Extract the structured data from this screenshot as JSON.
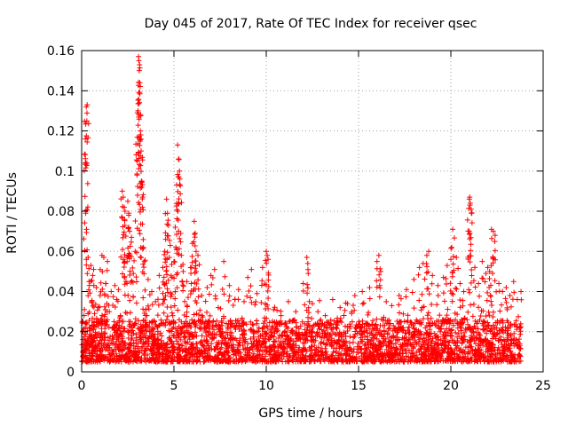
{
  "chart_data": {
    "type": "scatter",
    "title": "Day 045 of 2017, Rate Of TEC Index for receiver qsec",
    "xlabel": "GPS time / hours",
    "ylabel": "ROTI / TECUs",
    "xlim": [
      0,
      25
    ],
    "ylim": [
      0,
      0.16
    ],
    "xticks": [
      0,
      5,
      10,
      15,
      20,
      25
    ],
    "xtick_labels": [
      "0",
      "5",
      "10",
      "15",
      "20",
      "25"
    ],
    "yticks": [
      0,
      0.02,
      0.04,
      0.06,
      0.08,
      0.1,
      0.12,
      0.14,
      0.16
    ],
    "ytick_labels": [
      "0",
      "0.02",
      "0.04",
      "0.06",
      "0.08",
      "0.1",
      "0.12",
      "0.14",
      "0.16"
    ],
    "grid": true,
    "marker": "+",
    "series_color": "#ff0000",
    "series": [
      {
        "name": "ROTI",
        "points": [
          [
            0.05,
            0.02
          ],
          [
            0.1,
            0.012
          ],
          [
            0.15,
            0.031
          ],
          [
            0.2,
            0.104
          ],
          [
            0.22,
            0.079
          ],
          [
            0.25,
            0.132
          ],
          [
            0.28,
            0.125
          ],
          [
            0.3,
            0.133
          ],
          [
            0.35,
            0.057
          ],
          [
            0.4,
            0.045
          ],
          [
            0.45,
            0.022
          ],
          [
            0.5,
            0.053
          ],
          [
            0.55,
            0.035
          ],
          [
            0.6,
            0.048
          ],
          [
            0.65,
            0.051
          ],
          [
            0.7,
            0.029
          ],
          [
            0.8,
            0.042
          ],
          [
            0.9,
            0.025
          ],
          [
            1.0,
            0.038
          ],
          [
            1.1,
            0.058
          ],
          [
            1.2,
            0.057
          ],
          [
            1.3,
            0.044
          ],
          [
            1.4,
            0.055
          ],
          [
            1.5,
            0.03
          ],
          [
            1.6,
            0.04
          ],
          [
            1.7,
            0.022
          ],
          [
            1.8,
            0.043
          ],
          [
            1.9,
            0.036
          ],
          [
            2.0,
            0.041
          ],
          [
            2.1,
            0.028
          ],
          [
            2.2,
            0.09
          ],
          [
            2.25,
            0.087
          ],
          [
            2.3,
            0.082
          ],
          [
            2.35,
            0.08
          ],
          [
            2.4,
            0.045
          ],
          [
            2.5,
            0.085
          ],
          [
            2.55,
            0.078
          ],
          [
            2.6,
            0.07
          ],
          [
            2.7,
            0.067
          ],
          [
            2.8,
            0.049
          ],
          [
            2.9,
            0.06
          ],
          [
            3.0,
            0.098
          ],
          [
            3.02,
            0.129
          ],
          [
            3.05,
            0.13
          ],
          [
            3.08,
            0.157
          ],
          [
            3.1,
            0.155
          ],
          [
            3.12,
            0.15
          ],
          [
            3.15,
            0.144
          ],
          [
            3.18,
            0.12
          ],
          [
            3.2,
            0.118
          ],
          [
            3.22,
            0.11
          ],
          [
            3.25,
            0.092
          ],
          [
            3.3,
            0.087
          ],
          [
            3.35,
            0.062
          ],
          [
            3.4,
            0.055
          ],
          [
            3.6,
            0.046
          ],
          [
            3.8,
            0.04
          ],
          [
            4.0,
            0.035
          ],
          [
            4.2,
            0.048
          ],
          [
            4.4,
            0.052
          ],
          [
            4.5,
            0.06
          ],
          [
            4.55,
            0.066
          ],
          [
            4.6,
            0.086
          ],
          [
            4.65,
            0.079
          ],
          [
            4.7,
            0.073
          ],
          [
            4.8,
            0.063
          ],
          [
            4.9,
            0.047
          ],
          [
            5.0,
            0.055
          ],
          [
            5.1,
            0.062
          ],
          [
            5.15,
            0.084
          ],
          [
            5.2,
            0.113
          ],
          [
            5.25,
            0.106
          ],
          [
            5.3,
            0.1
          ],
          [
            5.32,
            0.096
          ],
          [
            5.4,
            0.058
          ],
          [
            5.5,
            0.05
          ],
          [
            5.7,
            0.045
          ],
          [
            5.9,
            0.052
          ],
          [
            6.0,
            0.064
          ],
          [
            6.1,
            0.075
          ],
          [
            6.15,
            0.069
          ],
          [
            6.2,
            0.06
          ],
          [
            6.3,
            0.058
          ],
          [
            6.5,
            0.038
          ],
          [
            6.8,
            0.042
          ],
          [
            7.0,
            0.048
          ],
          [
            7.2,
            0.051
          ],
          [
            7.4,
            0.032
          ],
          [
            7.7,
            0.055
          ],
          [
            8.0,
            0.043
          ],
          [
            8.3,
            0.036
          ],
          [
            8.5,
            0.041
          ],
          [
            8.8,
            0.035
          ],
          [
            9.0,
            0.047
          ],
          [
            9.2,
            0.051
          ],
          [
            9.5,
            0.039
          ],
          [
            9.8,
            0.052
          ],
          [
            10.0,
            0.06
          ],
          [
            10.05,
            0.058
          ],
          [
            10.1,
            0.056
          ],
          [
            10.4,
            0.031
          ],
          [
            10.8,
            0.028
          ],
          [
            11.2,
            0.035
          ],
          [
            11.6,
            0.03
          ],
          [
            12.0,
            0.044
          ],
          [
            12.2,
            0.057
          ],
          [
            12.25,
            0.054
          ],
          [
            12.5,
            0.034
          ],
          [
            12.8,
            0.03
          ],
          [
            13.2,
            0.028
          ],
          [
            13.6,
            0.036
          ],
          [
            14.0,
            0.032
          ],
          [
            14.4,
            0.034
          ],
          [
            14.8,
            0.038
          ],
          [
            15.2,
            0.04
          ],
          [
            15.6,
            0.042
          ],
          [
            16.0,
            0.055
          ],
          [
            16.1,
            0.058
          ],
          [
            16.2,
            0.05
          ],
          [
            16.5,
            0.035
          ],
          [
            16.8,
            0.033
          ],
          [
            17.2,
            0.038
          ],
          [
            17.6,
            0.041
          ],
          [
            18.0,
            0.046
          ],
          [
            18.3,
            0.052
          ],
          [
            18.5,
            0.054
          ],
          [
            18.7,
            0.058
          ],
          [
            18.8,
            0.06
          ],
          [
            19.0,
            0.048
          ],
          [
            19.3,
            0.043
          ],
          [
            19.6,
            0.047
          ],
          [
            19.8,
            0.053
          ],
          [
            20.0,
            0.056
          ],
          [
            20.05,
            0.062
          ],
          [
            20.1,
            0.071
          ],
          [
            20.3,
            0.057
          ],
          [
            20.5,
            0.044
          ],
          [
            20.7,
            0.04
          ],
          [
            21.0,
            0.086
          ],
          [
            21.02,
            0.087
          ],
          [
            21.05,
            0.084
          ],
          [
            21.1,
            0.081
          ],
          [
            21.3,
            0.052
          ],
          [
            21.5,
            0.044
          ],
          [
            21.7,
            0.055
          ],
          [
            21.9,
            0.049
          ],
          [
            22.0,
            0.052
          ],
          [
            22.1,
            0.05
          ],
          [
            22.2,
            0.071
          ],
          [
            22.3,
            0.07
          ],
          [
            22.4,
            0.068
          ],
          [
            22.6,
            0.044
          ],
          [
            22.8,
            0.04
          ],
          [
            23.0,
            0.042
          ],
          [
            23.2,
            0.038
          ],
          [
            23.4,
            0.045
          ],
          [
            23.6,
            0.036
          ],
          [
            23.8,
            0.04
          ]
        ],
        "baseline_band": {
          "x_range": [
            0,
            23.8
          ],
          "y_min": 0.005,
          "y_max": 0.026,
          "note": "dense band of ROTI values spanning the full day"
        }
      }
    ]
  }
}
